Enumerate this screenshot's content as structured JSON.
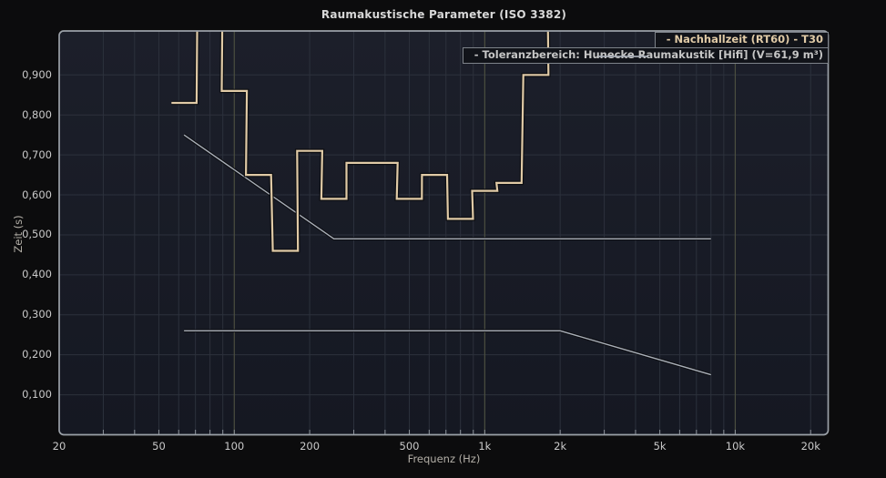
{
  "title": "Raumakustische Parameter (ISO 3382)",
  "axes": {
    "x_label": "Frequenz (Hz)",
    "y_label": "Zeit (s)"
  },
  "legend": {
    "rt60_label": "- Nachhallzeit (RT60) - T30",
    "tolerance_label": "- Toleranzbereich: Hunecke Raumakustik [Hifi] (V=61,9 m³)"
  },
  "colors": {
    "page_background": "#0c0c0d",
    "plot_background_top": "#1c1f2a",
    "plot_background_bottom": "#151822",
    "grid_minor": "#2c313c",
    "grid_major": "#4b4e40",
    "plot_border": "#9ba1a8",
    "tick_stub": "#8d939b",
    "rt60_curve": "#e0caa6",
    "tolerance_line": "#a9afb8",
    "curve_outline": "#0d0e12",
    "tick_text": "#c9c9c9",
    "axis_title_text": "#b3afa7",
    "title_text": "#d8d8d8"
  },
  "chart_data": {
    "type": "line",
    "title": "Raumakustische Parameter (ISO 3382)",
    "xlabel": "Frequenz (Hz)",
    "ylabel": "Zeit (s)",
    "x_scale": "log10",
    "xlim": [
      20,
      23500
    ],
    "ylim": [
      0,
      1.01
    ],
    "grid": true,
    "legend_position": "top-right",
    "x_ticks": [
      {
        "f": 20,
        "label": "20"
      },
      {
        "f": 50,
        "label": "50"
      },
      {
        "f": 100,
        "label": "100"
      },
      {
        "f": 200,
        "label": "200"
      },
      {
        "f": 500,
        "label": "500"
      },
      {
        "f": 1000,
        "label": "1k"
      },
      {
        "f": 2000,
        "label": "2k"
      },
      {
        "f": 5000,
        "label": "5k"
      },
      {
        "f": 10000,
        "label": "10k"
      },
      {
        "f": 20000,
        "label": "20k"
      }
    ],
    "y_ticks": [
      {
        "v": 0.1,
        "label": "0,100"
      },
      {
        "v": 0.2,
        "label": "0,200"
      },
      {
        "v": 0.3,
        "label": "0,300"
      },
      {
        "v": 0.4,
        "label": "0,400"
      },
      {
        "v": 0.5,
        "label": "0,500"
      },
      {
        "v": 0.6,
        "label": "0,600"
      },
      {
        "v": 0.7,
        "label": "0,700"
      },
      {
        "v": 0.8,
        "label": "0,800"
      },
      {
        "v": 0.9,
        "label": "0,900"
      }
    ],
    "series": [
      {
        "name": "Nachhallzeit (RT60) - T30",
        "style": "step-third-octave-bands",
        "color_key": "rt60_curve",
        "unit": "s",
        "bands": [
          {
            "center_hz": 63,
            "rt60_s": 0.83
          },
          {
            "center_hz": 80,
            "rt60_s": null,
            "note": "above plot maximum"
          },
          {
            "center_hz": 100,
            "rt60_s": 0.86
          },
          {
            "center_hz": 125,
            "rt60_s": 0.65
          },
          {
            "center_hz": 160,
            "rt60_s": 0.46
          },
          {
            "center_hz": 200,
            "rt60_s": 0.71
          },
          {
            "center_hz": 250,
            "rt60_s": 0.59
          },
          {
            "center_hz": 315,
            "rt60_s": 0.68
          },
          {
            "center_hz": 400,
            "rt60_s": 0.68
          },
          {
            "center_hz": 500,
            "rt60_s": 0.59
          },
          {
            "center_hz": 630,
            "rt60_s": 0.65
          },
          {
            "center_hz": 800,
            "rt60_s": 0.54
          },
          {
            "center_hz": 1000,
            "rt60_s": 0.61
          },
          {
            "center_hz": 1250,
            "rt60_s": 0.63
          },
          {
            "center_hz": 1600,
            "rt60_s": 0.9
          },
          {
            "center_hz": 2000,
            "rt60_s": null,
            "note": "above plot maximum"
          }
        ]
      },
      {
        "name": "Toleranzbereich obere Grenze",
        "style": "line",
        "color_key": "tolerance_line",
        "points": [
          [
            63,
            0.75
          ],
          [
            250,
            0.49
          ],
          [
            8000,
            0.49
          ]
        ]
      },
      {
        "name": "Toleranzbereich untere Grenze",
        "style": "line",
        "color_key": "tolerance_line",
        "points": [
          [
            63,
            0.26
          ],
          [
            2000,
            0.26
          ],
          [
            8000,
            0.15
          ]
        ]
      }
    ]
  }
}
